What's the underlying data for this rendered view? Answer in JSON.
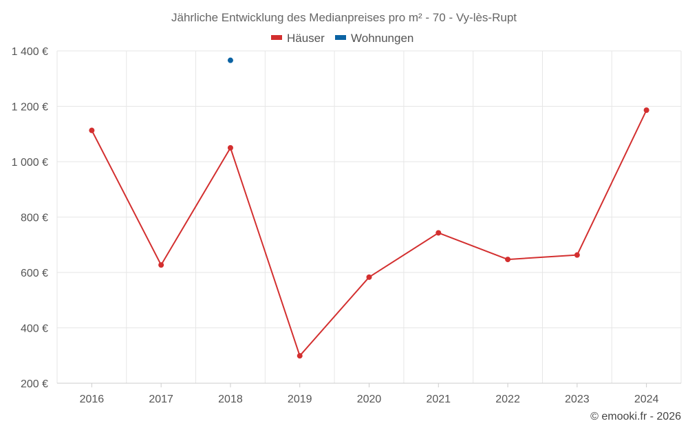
{
  "chart_data": {
    "type": "line",
    "title": "Jährliche Entwicklung des Medianpreises pro m² - 70 - Vy-lès-Rupt",
    "xlabel": "",
    "ylabel": "",
    "categories": [
      "2016",
      "2017",
      "2018",
      "2019",
      "2020",
      "2021",
      "2022",
      "2023",
      "2024"
    ],
    "ylim": [
      200,
      1400
    ],
    "yticks": [
      200,
      400,
      600,
      800,
      1000,
      1200,
      1400
    ],
    "ytick_labels": [
      "200 €",
      "400 €",
      "600 €",
      "800 €",
      "1 000 €",
      "1 200 €",
      "1 400 €"
    ],
    "grid": true,
    "legend_position": "top-center",
    "series": [
      {
        "name": "Häuser",
        "color": "#d32f2f",
        "values": [
          1113,
          627,
          1050,
          299,
          583,
          743,
          647,
          663,
          1186
        ]
      },
      {
        "name": "Wohnungen",
        "color": "#0b63a3",
        "values": [
          null,
          null,
          1366,
          null,
          null,
          null,
          null,
          null,
          null
        ]
      }
    ],
    "credit": "© emooki.fr - 2026"
  }
}
